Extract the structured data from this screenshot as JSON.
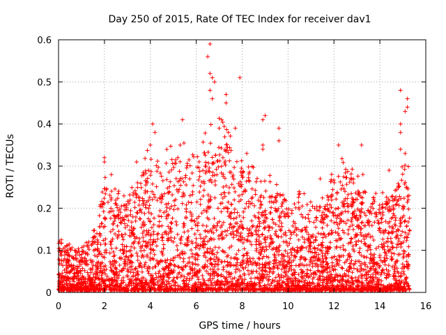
{
  "chart_data": {
    "type": "scatter",
    "title": "Day 250 of 2015, Rate Of TEC Index for receiver dav1",
    "xlabel": "GPS time / hours",
    "ylabel": "ROTI / TECUs",
    "xlim": [
      0,
      16
    ],
    "ylim": [
      0,
      0.6
    ],
    "xticks": [
      "0",
      "2",
      "4",
      "6",
      "8",
      "10",
      "12",
      "14",
      "16"
    ],
    "yticks": [
      "0",
      "0.1",
      "0.2",
      "0.3",
      "0.4",
      "0.5",
      "0.6"
    ],
    "grid": true,
    "marker": "+",
    "color": "#ff0000",
    "x_range_of_data": [
      0,
      15.3
    ],
    "envelope": {
      "description": "approximate per-hour upper extent of the dense ROTI point cloud (TECU)",
      "hours": [
        0,
        0.5,
        1,
        1.5,
        2,
        2.5,
        3,
        3.5,
        4,
        4.5,
        5,
        5.5,
        6,
        6.5,
        7,
        7.5,
        8,
        8.5,
        9,
        9.5,
        10,
        10.5,
        11,
        11.5,
        12,
        12.5,
        13,
        13.5,
        14,
        14.5,
        15,
        15.3
      ],
      "typical_max": [
        0.12,
        0.1,
        0.1,
        0.12,
        0.25,
        0.22,
        0.2,
        0.25,
        0.3,
        0.28,
        0.3,
        0.3,
        0.28,
        0.33,
        0.35,
        0.32,
        0.3,
        0.25,
        0.25,
        0.22,
        0.22,
        0.2,
        0.2,
        0.2,
        0.25,
        0.28,
        0.26,
        0.22,
        0.2,
        0.22,
        0.28,
        0.25
      ]
    },
    "outliers": [
      {
        "x": 6.6,
        "y": 0.59
      },
      {
        "x": 6.5,
        "y": 0.56
      },
      {
        "x": 6.6,
        "y": 0.52
      },
      {
        "x": 6.7,
        "y": 0.51
      },
      {
        "x": 6.8,
        "y": 0.5
      },
      {
        "x": 7.9,
        "y": 0.51
      },
      {
        "x": 6.6,
        "y": 0.48
      },
      {
        "x": 6.7,
        "y": 0.46
      },
      {
        "x": 7.3,
        "y": 0.47
      },
      {
        "x": 7.3,
        "y": 0.45
      },
      {
        "x": 14.9,
        "y": 0.48
      },
      {
        "x": 15.2,
        "y": 0.46
      },
      {
        "x": 15.2,
        "y": 0.44
      },
      {
        "x": 15.1,
        "y": 0.43
      },
      {
        "x": 9.0,
        "y": 0.42
      },
      {
        "x": 8.9,
        "y": 0.41
      },
      {
        "x": 7.1,
        "y": 0.41
      },
      {
        "x": 5.4,
        "y": 0.41
      },
      {
        "x": 4.1,
        "y": 0.4
      },
      {
        "x": 4.2,
        "y": 0.38
      },
      {
        "x": 9.6,
        "y": 0.39
      },
      {
        "x": 14.9,
        "y": 0.4
      },
      {
        "x": 14.9,
        "y": 0.38
      },
      {
        "x": 8.9,
        "y": 0.35
      },
      {
        "x": 8.9,
        "y": 0.34
      },
      {
        "x": 9.6,
        "y": 0.36
      },
      {
        "x": 2.0,
        "y": 0.31
      },
      {
        "x": 2.0,
        "y": 0.32
      },
      {
        "x": 2.3,
        "y": 0.28
      },
      {
        "x": 13.2,
        "y": 0.35
      },
      {
        "x": 12.2,
        "y": 0.35
      },
      {
        "x": 14.4,
        "y": 0.29
      },
      {
        "x": 14.9,
        "y": 0.34
      },
      {
        "x": 15.1,
        "y": 0.33
      },
      {
        "x": 4.0,
        "y": 0.35
      },
      {
        "x": 5.3,
        "y": 0.35
      },
      {
        "x": 7.4,
        "y": 0.38
      },
      {
        "x": 7.0,
        "y": 0.39
      },
      {
        "x": 7.7,
        "y": 0.39
      },
      {
        "x": 8.2,
        "y": 0.33
      },
      {
        "x": 11.4,
        "y": 0.27
      },
      {
        "x": 3.4,
        "y": 0.31
      }
    ]
  }
}
